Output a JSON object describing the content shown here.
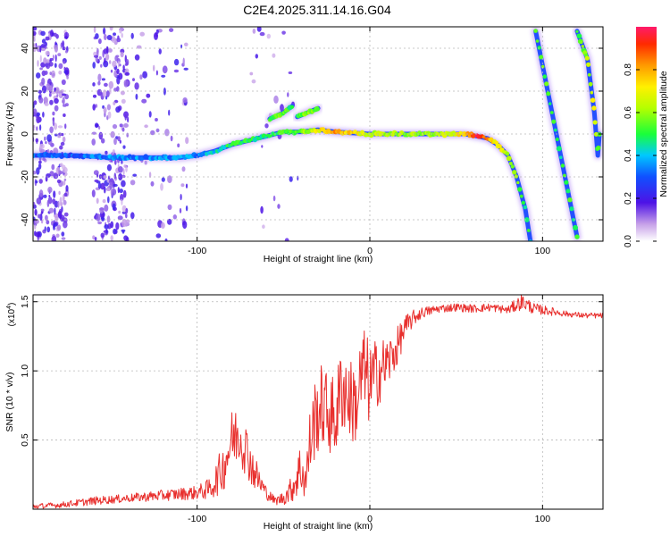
{
  "figure_title": "C2E4.2025.311.14.16.G04",
  "chart_data": [
    {
      "type": "heatmap",
      "title": "C2E4.2025.311.14.16.G04",
      "xlabel": "Height of straight line (km)",
      "ylabel": "Frequency (Hz)",
      "xlim": [
        -195,
        135
      ],
      "ylim": [
        -50,
        50
      ],
      "x_ticks": [
        -100,
        0,
        100
      ],
      "x_tick_labels": [
        "-100",
        "0",
        "100"
      ],
      "y_ticks": [
        -40,
        -20,
        0,
        20,
        40
      ],
      "y_tick_labels": [
        "-40",
        "-20",
        "0",
        "20",
        "40"
      ],
      "colorbar": {
        "label": "Normalized spectral amplitude",
        "range": [
          0,
          1
        ],
        "ticks": [
          0.0,
          0.2,
          0.4,
          0.6,
          0.8
        ],
        "tick_labels": [
          "0.0",
          "0.2",
          "0.4",
          "0.6",
          "0.8"
        ]
      },
      "tracks": [
        {
          "name": "main-ridge",
          "x": [
            -195,
            -170,
            -150,
            -130,
            -110,
            -100,
            -90,
            -80,
            -70,
            -60,
            -50,
            -40,
            -30,
            -20,
            0,
            20,
            40,
            55,
            62,
            68,
            74,
            80,
            85,
            90,
            93
          ],
          "y": [
            -10,
            -10,
            -11,
            -11,
            -11,
            -10,
            -8,
            -5,
            -3,
            -1,
            1,
            1,
            2,
            1,
            0,
            0,
            0,
            0,
            -1,
            -2,
            -5,
            -10,
            -20,
            -35,
            -50
          ],
          "amplitude": [
            0.3,
            0.3,
            0.35,
            0.35,
            0.35,
            0.35,
            0.4,
            0.5,
            0.5,
            0.45,
            0.5,
            0.55,
            0.7,
            0.8,
            0.65,
            0.6,
            0.6,
            0.75,
            0.95,
            0.85,
            0.7,
            0.6,
            0.55,
            0.5,
            0.45
          ]
        },
        {
          "name": "upper-branch",
          "x": [
            -58,
            -50,
            -45
          ],
          "y": [
            7,
            10,
            13
          ],
          "amplitude": [
            0.5,
            0.55,
            0.5
          ]
        },
        {
          "name": "upper-branch-2",
          "x": [
            -42,
            -36,
            -30
          ],
          "y": [
            8,
            10,
            12
          ],
          "amplitude": [
            0.5,
            0.6,
            0.55
          ]
        },
        {
          "name": "steep-line-1",
          "x": [
            96,
            108,
            120
          ],
          "y": [
            48,
            0,
            -48
          ],
          "amplitude": [
            0.55,
            0.5,
            0.5
          ]
        },
        {
          "name": "steep-line-2",
          "x": [
            120,
            126,
            130,
            132,
            133
          ],
          "y": [
            48,
            35,
            10,
            -10,
            0
          ],
          "amplitude": [
            0.5,
            0.6,
            0.7,
            0.55,
            0.5
          ]
        }
      ]
    },
    {
      "type": "line",
      "xlabel": "Height of straight line (km)",
      "ylabel": "SNR (10 * v/v)",
      "y_multiplier_label": "(x10",
      "y_multiplier_exp": "4",
      "xlim": [
        -195,
        135
      ],
      "ylim": [
        0,
        1.55
      ],
      "x_ticks": [
        -100,
        0,
        100
      ],
      "x_tick_labels": [
        "-100",
        "0",
        "100"
      ],
      "y_ticks": [
        0.5,
        1.0,
        1.5
      ],
      "y_tick_labels": [
        "0.5",
        "1.0",
        "1.5"
      ],
      "series": [
        {
          "name": "SNR",
          "color": "#e8302e",
          "x": [
            -195,
            -180,
            -160,
            -140,
            -120,
            -100,
            -92,
            -85,
            -80,
            -76,
            -72,
            -68,
            -64,
            -60,
            -55,
            -50,
            -45,
            -40,
            -37,
            -35,
            -32,
            -28,
            -24,
            -20,
            -16,
            -12,
            -8,
            -4,
            0,
            5,
            10,
            15,
            20,
            25,
            30,
            40,
            50,
            60,
            70,
            80,
            88,
            95,
            105,
            115,
            125,
            135
          ],
          "y": [
            0.02,
            0.03,
            0.06,
            0.08,
            0.1,
            0.12,
            0.15,
            0.3,
            0.5,
            0.55,
            0.45,
            0.3,
            0.2,
            0.12,
            0.06,
            0.08,
            0.15,
            0.3,
            0.2,
            0.45,
            0.65,
            0.75,
            0.7,
            0.65,
            0.9,
            0.8,
            0.75,
            1.0,
            0.9,
            1.0,
            1.05,
            1.15,
            1.3,
            1.38,
            1.42,
            1.45,
            1.46,
            1.45,
            1.46,
            1.44,
            1.5,
            1.45,
            1.43,
            1.41,
            1.4,
            1.4
          ],
          "jitter": [
            0.02,
            0.02,
            0.03,
            0.03,
            0.04,
            0.05,
            0.08,
            0.18,
            0.22,
            0.22,
            0.2,
            0.15,
            0.1,
            0.05,
            0.03,
            0.05,
            0.1,
            0.2,
            0.15,
            0.25,
            0.3,
            0.3,
            0.3,
            0.3,
            0.35,
            0.3,
            0.3,
            0.35,
            0.3,
            0.25,
            0.2,
            0.15,
            0.1,
            0.06,
            0.04,
            0.03,
            0.03,
            0.03,
            0.03,
            0.03,
            0.06,
            0.04,
            0.03,
            0.02,
            0.02,
            0.02
          ]
        }
      ]
    }
  ]
}
